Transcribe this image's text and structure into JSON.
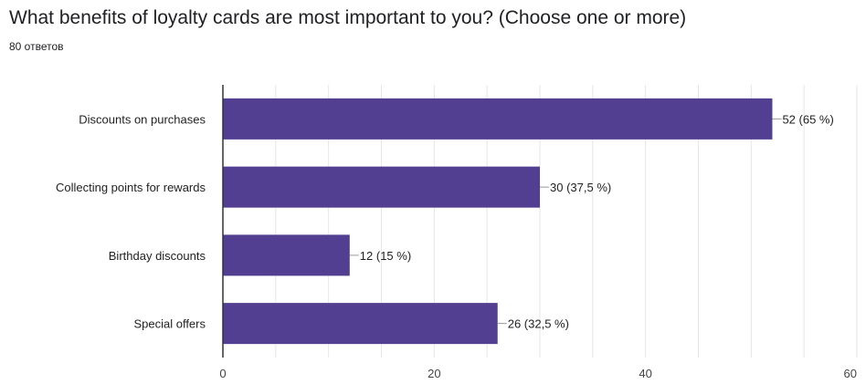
{
  "header": {
    "question": "What benefits of loyalty cards are most important to you? (Choose one or more)",
    "responses": "80 ответов"
  },
  "colors": {
    "bar": "#533f91",
    "grid": "#e6e6e6",
    "axis": "#333333",
    "leader": "#999999"
  },
  "chart_data": {
    "type": "bar",
    "orientation": "horizontal",
    "categories": [
      "Discounts on purchases",
      "Collecting points for rewards",
      "Birthday discounts",
      "Special offers"
    ],
    "values": [
      52,
      30,
      12,
      26
    ],
    "value_labels": [
      "52 (65 %)",
      "30 (37,5 %)",
      "12 (15 %)",
      "26 (32,5 %)"
    ],
    "xlim": [
      0,
      60
    ],
    "xticks": [
      0,
      20,
      40,
      60
    ],
    "grid": true,
    "title": "What benefits of loyalty cards are most important to you? (Choose one or more)",
    "xlabel": "",
    "ylabel": ""
  }
}
